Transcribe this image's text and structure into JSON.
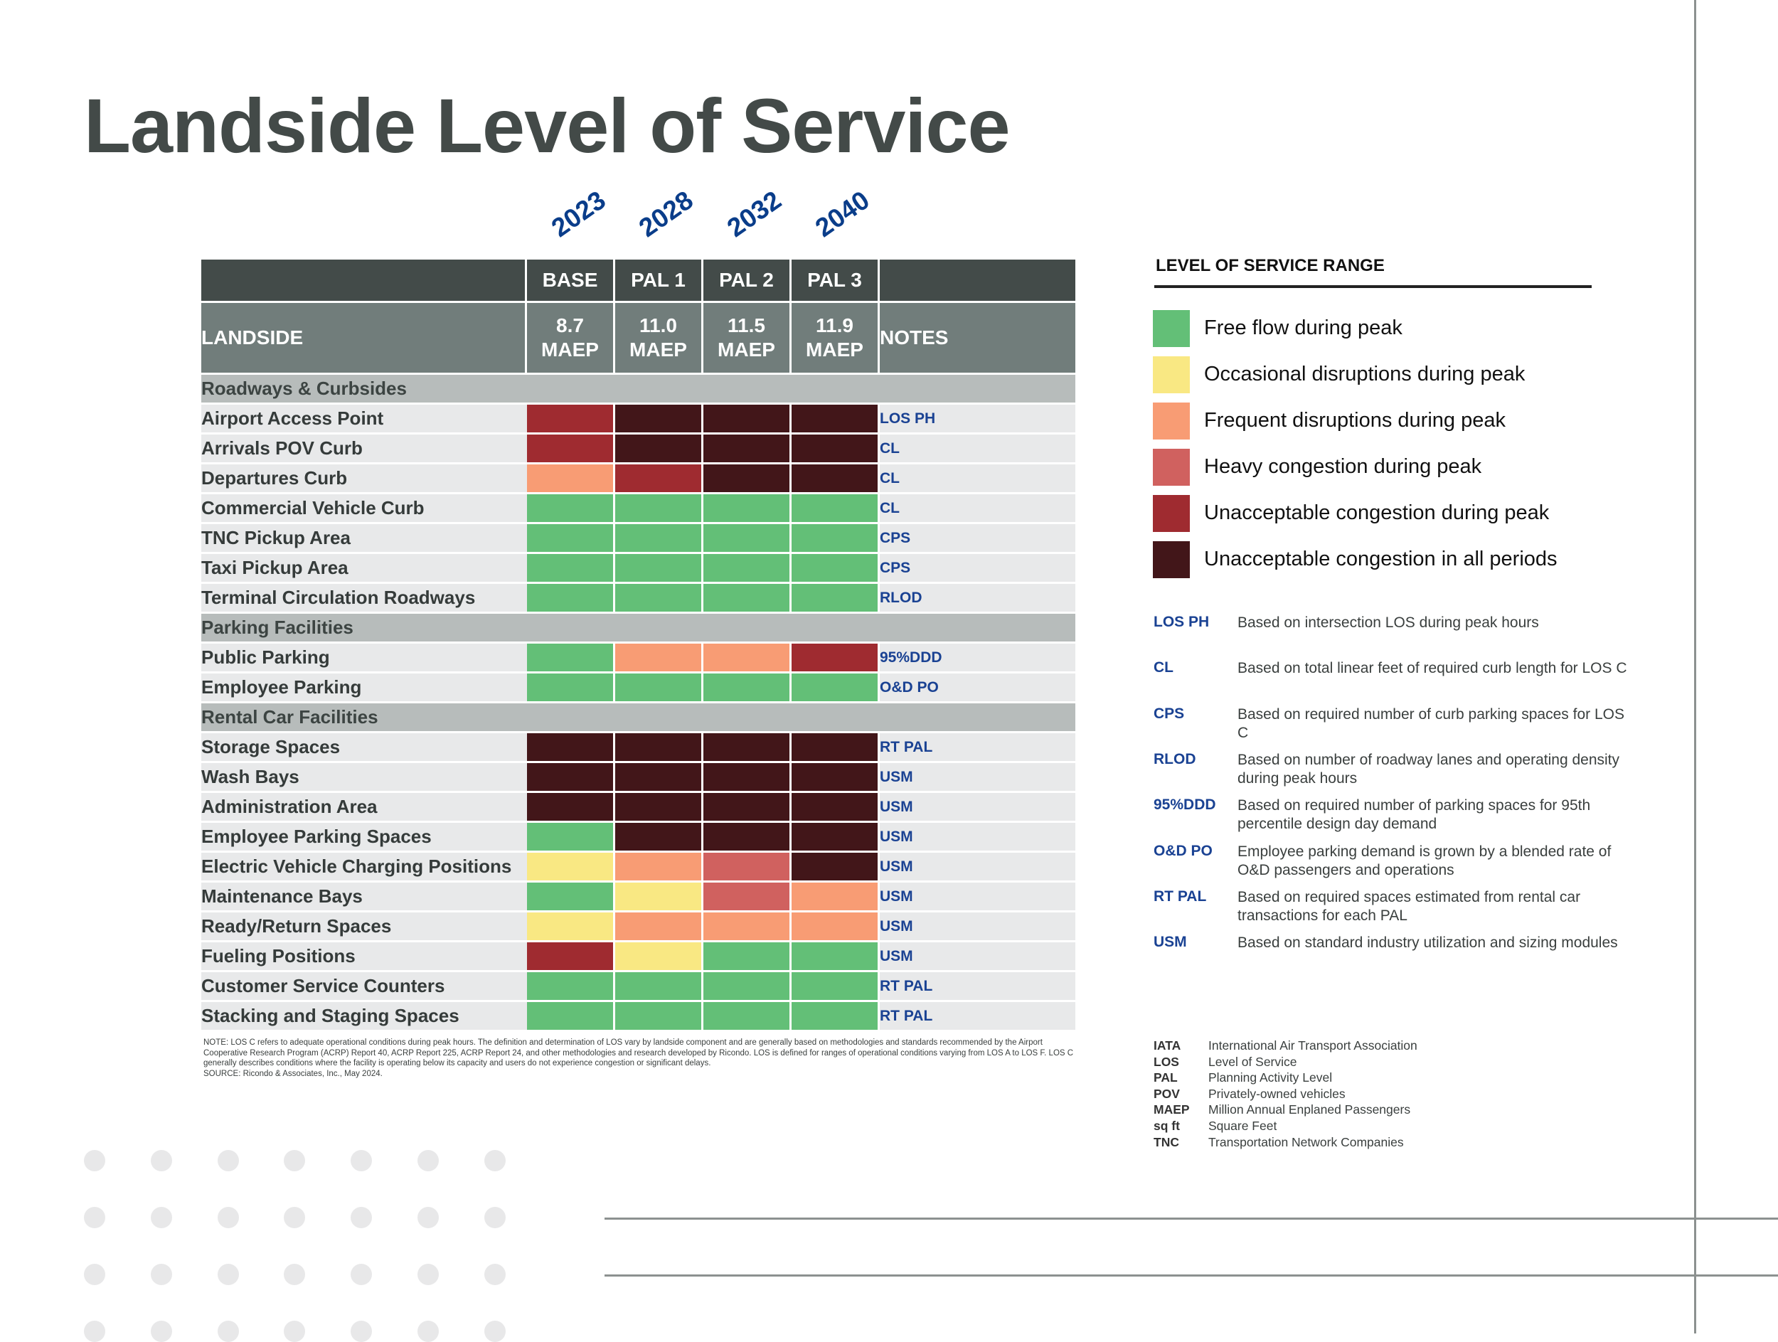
{
  "title": "Landside Level of Service",
  "colors": {
    "G": "#63bf77",
    "Y": "#f9e883",
    "O": "#f89c74",
    "R": "#d0615f",
    "D": "#9f2b30",
    "K": "#421619"
  },
  "chart_data": {
    "type": "table",
    "years": [
      "2023",
      "2028",
      "2032",
      "2040"
    ],
    "header": {
      "scenarios": [
        "BASE",
        "PAL 1",
        "PAL 2",
        "PAL 3"
      ],
      "landside_label": "LANDSIDE",
      "demand": [
        "8.7 MAEP",
        "11.0 MAEP",
        "11.5 MAEP",
        "11.9 MAEP"
      ],
      "notes_label": "NOTES"
    },
    "sections": [
      {
        "name": "Roadways & Curbsides",
        "rows": [
          {
            "label": "Airport Access Point",
            "levels": [
              "D",
              "K",
              "K",
              "K"
            ],
            "note": "LOS PH"
          },
          {
            "label": "Arrivals POV Curb",
            "levels": [
              "D",
              "K",
              "K",
              "K"
            ],
            "note": "CL"
          },
          {
            "label": "Departures Curb",
            "levels": [
              "O",
              "D",
              "K",
              "K"
            ],
            "note": "CL"
          },
          {
            "label": "Commercial Vehicle Curb",
            "levels": [
              "G",
              "G",
              "G",
              "G"
            ],
            "note": "CL"
          },
          {
            "label": "TNC Pickup Area",
            "levels": [
              "G",
              "G",
              "G",
              "G"
            ],
            "note": "CPS"
          },
          {
            "label": "Taxi Pickup Area",
            "levels": [
              "G",
              "G",
              "G",
              "G"
            ],
            "note": "CPS"
          },
          {
            "label": "Terminal Circulation Roadways",
            "levels": [
              "G",
              "G",
              "G",
              "G"
            ],
            "note": "RLOD"
          }
        ]
      },
      {
        "name": "Parking Facilities",
        "rows": [
          {
            "label": "Public Parking",
            "levels": [
              "G",
              "O",
              "O",
              "D"
            ],
            "note": "95%DDD"
          },
          {
            "label": "Employee Parking",
            "levels": [
              "G",
              "G",
              "G",
              "G"
            ],
            "note": "O&D PO"
          }
        ]
      },
      {
        "name": "Rental Car Facilities",
        "rows": [
          {
            "label": "Storage Spaces",
            "levels": [
              "K",
              "K",
              "K",
              "K"
            ],
            "note": "RT PAL"
          },
          {
            "label": "Wash Bays",
            "levels": [
              "K",
              "K",
              "K",
              "K"
            ],
            "note": "USM"
          },
          {
            "label": "Administration Area",
            "levels": [
              "K",
              "K",
              "K",
              "K"
            ],
            "note": "USM"
          },
          {
            "label": "Employee Parking Spaces",
            "levels": [
              "G",
              "K",
              "K",
              "K"
            ],
            "note": "USM"
          },
          {
            "label": "Electric Vehicle Charging Positions",
            "levels": [
              "Y",
              "O",
              "R",
              "K"
            ],
            "note": "USM"
          },
          {
            "label": "Maintenance Bays",
            "levels": [
              "G",
              "Y",
              "R",
              "O"
            ],
            "note": "USM"
          },
          {
            "label": "Ready/Return Spaces",
            "levels": [
              "Y",
              "O",
              "O",
              "O"
            ],
            "note": "USM"
          },
          {
            "label": "Fueling Positions",
            "levels": [
              "D",
              "Y",
              "G",
              "G"
            ],
            "note": "USM"
          },
          {
            "label": "Customer Service Counters",
            "levels": [
              "G",
              "G",
              "G",
              "G"
            ],
            "note": "RT PAL"
          },
          {
            "label": "Stacking and Staging Spaces",
            "levels": [
              "G",
              "G",
              "G",
              "G"
            ],
            "note": "RT PAL"
          }
        ]
      }
    ]
  },
  "footnote": "NOTE:  LOS C refers to adequate operational conditions during peak hours. The definition and determination of LOS vary by landside component and are generally based on methodologies and standards recommended by the Airport Cooperative Research Program (ACRP) Report 40, ACRP Report 225, ACRP Report 24, and other methodologies and research developed by Ricondo. LOS is defined for ranges of operational conditions varying from LOS A to LOS F. LOS C generally describes conditions where the facility is operating below its capacity and users do not experience congestion or significant delays.",
  "source": "SOURCE: Ricondo & Associates, Inc., May 2024.",
  "legend": {
    "title": "LEVEL OF SERVICE RANGE",
    "items": [
      {
        "key": "G",
        "label": "Free flow during peak"
      },
      {
        "key": "Y",
        "label": "Occasional disruptions during peak"
      },
      {
        "key": "O",
        "label": "Frequent disruptions during peak"
      },
      {
        "key": "R",
        "label": "Heavy congestion during peak"
      },
      {
        "key": "D",
        "label": "Unacceptable congestion during peak"
      },
      {
        "key": "K",
        "label": "Unacceptable congestion in all periods"
      }
    ]
  },
  "abbreviations": [
    {
      "code": "LOS PH",
      "desc": "Based on intersection LOS during peak hours"
    },
    {
      "code": "CL",
      "desc": "Based on total linear feet of required curb length for LOS C"
    },
    {
      "code": "CPS",
      "desc": "Based on required number of curb parking spaces for LOS C"
    },
    {
      "code": "RLOD",
      "desc": "Based on number of roadway lanes and operating density during peak hours"
    },
    {
      "code": "95%DDD",
      "desc": "Based on required number of parking spaces for 95th percentile design day demand"
    },
    {
      "code": "O&D PO",
      "desc": "Employee parking demand is grown by a blended rate of O&D passengers and operations"
    },
    {
      "code": "RT PAL",
      "desc": "Based on required spaces estimated from rental car transactions for each PAL"
    },
    {
      "code": "USM",
      "desc": "Based on standard industry utilization and sizing modules"
    }
  ],
  "glossary": [
    {
      "code": "IATA",
      "desc": "International Air Transport Association"
    },
    {
      "code": "LOS",
      "desc": "Level of Service"
    },
    {
      "code": "PAL",
      "desc": "Planning Activity Level"
    },
    {
      "code": "POV",
      "desc": "Privately-owned vehicles"
    },
    {
      "code": "MAEP",
      "desc": "Million Annual Enplaned Passengers"
    },
    {
      "code": "sq ft",
      "desc": "Square Feet"
    },
    {
      "code": "TNC",
      "desc": "Transportation Network Companies"
    }
  ]
}
